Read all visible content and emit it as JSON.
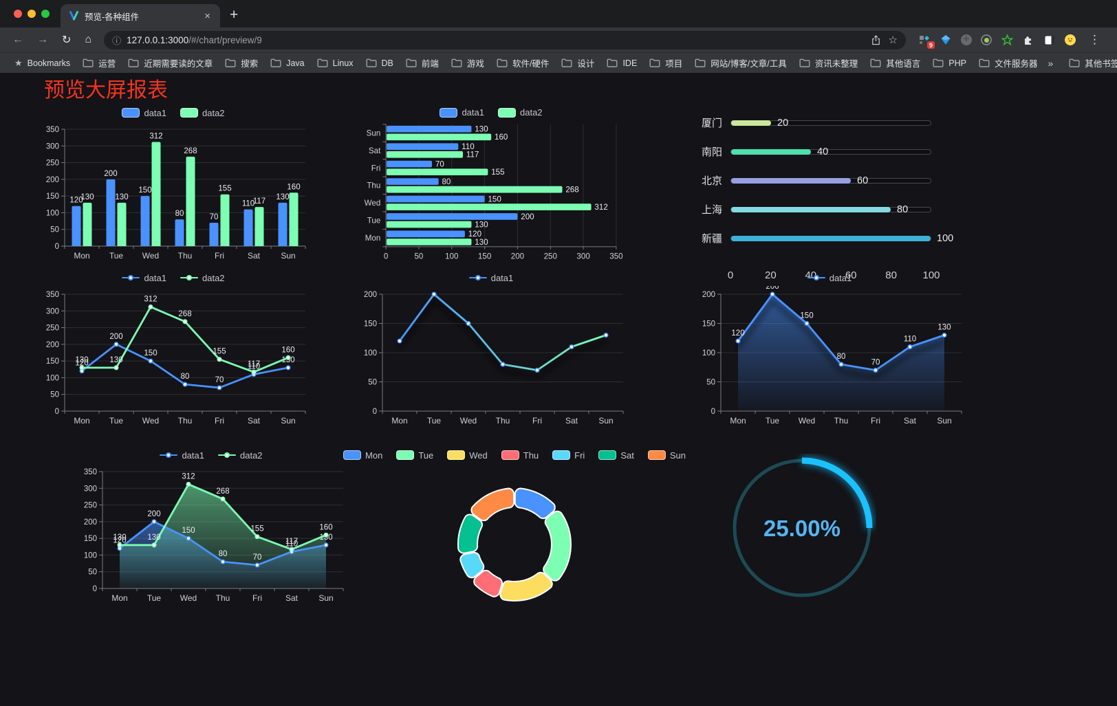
{
  "browser": {
    "tab_title": "预览-各种组件",
    "tab_close_glyph": "×",
    "new_tab_glyph": "+",
    "nav": {
      "back": "←",
      "forward": "→",
      "reload": "↻",
      "home": "⌂",
      "info": "ⓘ",
      "star": "☆"
    },
    "url_host": "127.0.0.1:3000",
    "url_path": "/#/chart/preview/9",
    "menu_glyph": "⋮",
    "extension_badge": "9",
    "traffic_lights": {
      "close": "#ff5f57",
      "minimize": "#febc2e",
      "zoom": "#28c840"
    },
    "bookmarks_bar": {
      "star_glyph": "★",
      "bookmarks_label": "Bookmarks",
      "folders": [
        "运营",
        "近期需要读的文章",
        "搜索",
        "Java",
        "Linux",
        "DB",
        "前端",
        "游戏",
        "软件/硬件",
        "设计",
        "IDE",
        "项目",
        "网站/博客/文章/工具",
        "资讯未整理",
        "其他语言",
        "PHP",
        "文件服务器"
      ],
      "overflow_glyph": "»",
      "other_bookmarks_label": "其他书签"
    }
  },
  "page": {
    "title": "预览大屏报表",
    "title_color": "#f5341f",
    "background": "#131318"
  },
  "chart_data": [
    {
      "id": "bar-vertical",
      "type": "bar",
      "categories": [
        "Mon",
        "Tue",
        "Wed",
        "Thu",
        "Fri",
        "Sat",
        "Sun"
      ],
      "series": [
        {
          "name": "data1",
          "color": "#4992ff",
          "values": [
            120,
            200,
            150,
            80,
            70,
            110,
            130
          ]
        },
        {
          "name": "data2",
          "color": "#7cffb2",
          "values": [
            130,
            130,
            312,
            268,
            155,
            117,
            160
          ]
        }
      ],
      "ylim": [
        0,
        350
      ],
      "ystep": 50,
      "grid": true,
      "legend_position": "top",
      "labels": true
    },
    {
      "id": "bar-horizontal",
      "type": "bar-horizontal",
      "categories_top_to_bottom": [
        "Sun",
        "Sat",
        "Fri",
        "Thu",
        "Wed",
        "Tue",
        "Mon"
      ],
      "series": [
        {
          "name": "data1",
          "color": "#4992ff",
          "values_top_to_bottom": [
            130,
            110,
            70,
            80,
            150,
            200,
            120
          ]
        },
        {
          "name": "data2",
          "color": "#7cffb2",
          "values_top_to_bottom": [
            160,
            117,
            155,
            268,
            312,
            130,
            130
          ]
        }
      ],
      "xlim": [
        0,
        350
      ],
      "xstep": 50,
      "grid": true,
      "labels": true
    },
    {
      "id": "progress",
      "type": "progress-bars",
      "xlim": [
        0,
        100
      ],
      "xticks": [
        0,
        20,
        40,
        60,
        80,
        100
      ],
      "items": [
        {
          "label": "厦门",
          "value": 20,
          "color": "#c9e89e"
        },
        {
          "label": "南阳",
          "value": 40,
          "color": "#4ce0ac"
        },
        {
          "label": "北京",
          "value": 60,
          "color": "#989fe3"
        },
        {
          "label": "上海",
          "value": 80,
          "color": "#83d9e4"
        },
        {
          "label": "新疆",
          "value": 100,
          "color": "#3fb0d8"
        }
      ]
    },
    {
      "id": "line-two",
      "type": "line",
      "categories": [
        "Mon",
        "Tue",
        "Wed",
        "Thu",
        "Fri",
        "Sat",
        "Sun"
      ],
      "series": [
        {
          "name": "data1",
          "color": "#4992ff",
          "values": [
            120,
            200,
            150,
            80,
            70,
            110,
            130
          ]
        },
        {
          "name": "data2",
          "color": "#7cffb2",
          "values": [
            130,
            130,
            312,
            268,
            155,
            117,
            160
          ]
        }
      ],
      "ylim": [
        0,
        350
      ],
      "ystep": 50,
      "labels": true
    },
    {
      "id": "line-gradient",
      "type": "line",
      "categories": [
        "Mon",
        "Tue",
        "Wed",
        "Thu",
        "Fri",
        "Sat",
        "Sun"
      ],
      "series": [
        {
          "name": "data1",
          "color": "#4992ff",
          "gradient": [
            "#4992ff",
            "#7cffb2"
          ],
          "values": [
            120,
            200,
            150,
            80,
            70,
            110,
            130
          ]
        }
      ],
      "ylim": [
        0,
        200
      ],
      "ystep": 50,
      "labels": false,
      "shadow": true
    },
    {
      "id": "line-area",
      "type": "line",
      "categories": [
        "Mon",
        "Tue",
        "Wed",
        "Thu",
        "Fri",
        "Sat",
        "Sun"
      ],
      "series": [
        {
          "name": "data1",
          "color": "#4992ff",
          "area": true,
          "values": [
            120,
            200,
            150,
            80,
            70,
            110,
            130
          ]
        }
      ],
      "ylim": [
        0,
        200
      ],
      "ystep": 50,
      "labels": true,
      "shadow": true
    },
    {
      "id": "area-two",
      "type": "line",
      "categories": [
        "Mon",
        "Tue",
        "Wed",
        "Thu",
        "Fri",
        "Sat",
        "Sun"
      ],
      "series": [
        {
          "name": "data1",
          "color": "#4992ff",
          "area": true,
          "values": [
            120,
            200,
            150,
            80,
            70,
            110,
            130
          ]
        },
        {
          "name": "data2",
          "color": "#7cffb2",
          "area": true,
          "values": [
            130,
            130,
            312,
            268,
            155,
            117,
            160
          ]
        }
      ],
      "ylim": [
        0,
        350
      ],
      "ystep": 50,
      "labels": true
    },
    {
      "id": "donut",
      "type": "pie",
      "items": [
        {
          "label": "Mon",
          "value": 120,
          "color": "#4992ff"
        },
        {
          "label": "Tue",
          "value": 200,
          "color": "#7cffb2"
        },
        {
          "label": "Wed",
          "value": 150,
          "color": "#fddd60"
        },
        {
          "label": "Thu",
          "value": 80,
          "color": "#ff6e76"
        },
        {
          "label": "Fri",
          "value": 70,
          "color": "#58d9f9"
        },
        {
          "label": "Sat",
          "value": 110,
          "color": "#05c091"
        },
        {
          "label": "Sun",
          "value": 130,
          "color": "#ff8a45"
        }
      ],
      "inner_radius_ratio": 0.65,
      "border_color": "#ffffff"
    },
    {
      "id": "gauge",
      "type": "gauge",
      "value": 25,
      "label": "25.00%",
      "color": "#1bc1ff",
      "track_color": "#1d4a55",
      "text_color": "#55b5f0"
    }
  ]
}
